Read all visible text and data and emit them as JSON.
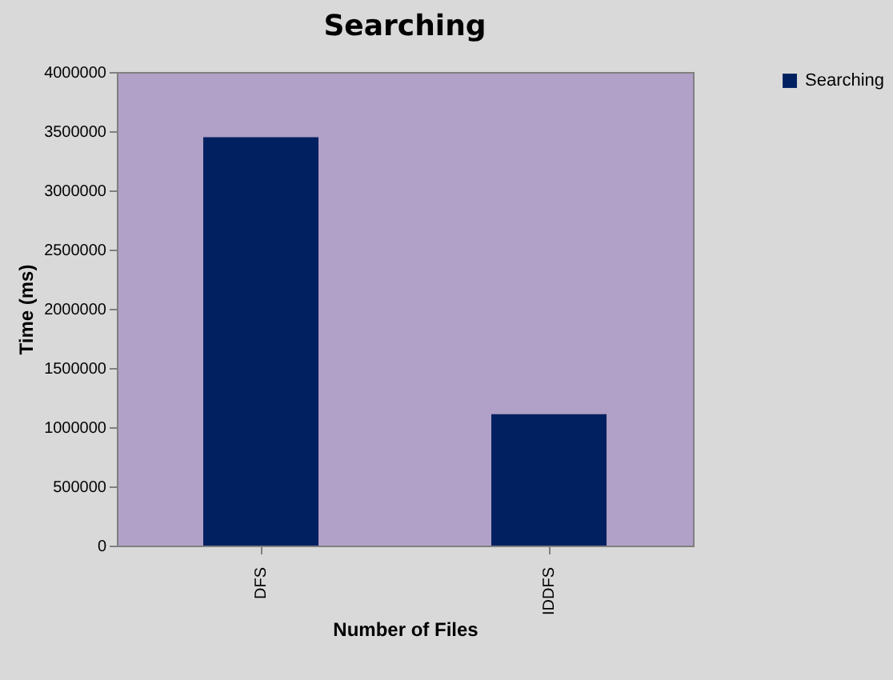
{
  "chart_data": {
    "type": "bar",
    "title": "Searching",
    "xlabel": "Number of Files",
    "ylabel": "Time (ms)",
    "categories": [
      "DFS",
      "IDDFS"
    ],
    "series": [
      {
        "name": "Searching",
        "color": "#002060",
        "values": [
          3450000,
          1110000
        ]
      }
    ],
    "ylim": [
      0,
      4000000
    ],
    "yticks": [
      0,
      500000,
      1000000,
      1500000,
      2000000,
      2500000,
      3000000,
      3500000,
      4000000
    ],
    "grid": false,
    "legend": "right"
  }
}
